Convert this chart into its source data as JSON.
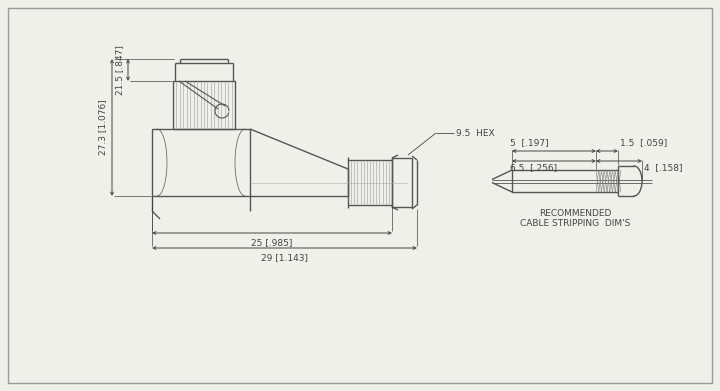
{
  "bg_color": "#f0f0eb",
  "line_color": "#555555",
  "lw": 1.0,
  "lw_thin": 0.5,
  "font_size": 6.5,
  "dim_color": "#444444",
  "dim_25_label": "25 [.985]",
  "dim_29_label": "29 [1.143]",
  "dim_27_label": "27.3 [1.076]",
  "dim_21_label": "21.5 [.847]",
  "dim_hex_label": "9.5  HEX",
  "dim_5_label": "5  [.197]",
  "dim_1p5_label": "1.5  [.059]",
  "dim_6p5_label": "6.5  [.256]",
  "dim_4_label": "4  [.158]",
  "strip_label1": "RECOMMENDED",
  "strip_label2": "CABLE STRIPPING  DIM'S"
}
